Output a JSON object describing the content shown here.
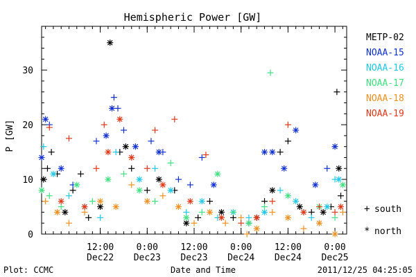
{
  "chart_data": {
    "type": "scatter",
    "title": "Hemispheric Power [GW]",
    "xlabel": "Date and Time",
    "ylabel": "P [GW]",
    "footer_left": "Plot: CCMC",
    "footer_right": "2011/12/25 04:25:05",
    "xlim": [
      "2011-12-21 21:00",
      "2011-12-25 03:00"
    ],
    "ylim": [
      0,
      38
    ],
    "y_ticks": [
      0,
      10,
      20,
      30
    ],
    "x_ticks": [
      {
        "time": "2011-12-22 12:00",
        "label": "12:00",
        "sub": "Dec22"
      },
      {
        "time": "2011-12-23 00:00",
        "label": "0:00",
        "sub": "Dec23"
      },
      {
        "time": "2011-12-23 12:00",
        "label": "12:00",
        "sub": "Dec23"
      },
      {
        "time": "2011-12-24 00:00",
        "label": "0:00",
        "sub": "Dec24"
      },
      {
        "time": "2011-12-24 12:00",
        "label": "12:00",
        "sub": "Dec24"
      },
      {
        "time": "2011-12-25 00:00",
        "label": "0:00",
        "sub": "Dec25"
      }
    ],
    "legend_position": "right",
    "marker_legend": [
      {
        "symbol": "+",
        "label": "south"
      },
      {
        "symbol": "*",
        "label": "north"
      }
    ],
    "series": [
      {
        "name": "METP-02",
        "color": "#000000",
        "points": [
          [
            "2011-12-21 21:30",
            10,
            "n"
          ],
          [
            "2011-12-21 22:30",
            12,
            "+"
          ],
          [
            "2011-12-21 23:30",
            15,
            "+"
          ],
          [
            "2011-12-22 01:00",
            11,
            "+"
          ],
          [
            "2011-12-22 03:00",
            4,
            "n"
          ],
          [
            "2011-12-22 05:00",
            8,
            "+"
          ],
          [
            "2011-12-22 07:00",
            11,
            "+"
          ],
          [
            "2011-12-22 09:00",
            3,
            "+"
          ],
          [
            "2011-12-22 12:00",
            5,
            "n"
          ],
          [
            "2011-12-22 14:30",
            35,
            "n"
          ],
          [
            "2011-12-22 17:00",
            15,
            "+"
          ],
          [
            "2011-12-22 18:30",
            16,
            "n"
          ],
          [
            "2011-12-22 20:00",
            12,
            "+"
          ],
          [
            "2011-12-23 00:00",
            8,
            "+"
          ],
          [
            "2011-12-23 03:00",
            10,
            "n"
          ],
          [
            "2011-12-23 07:00",
            8,
            "+"
          ],
          [
            "2011-12-23 10:00",
            2,
            "n"
          ],
          [
            "2011-12-23 13:00",
            3,
            "+"
          ],
          [
            "2011-12-23 16:00",
            6,
            "+"
          ],
          [
            "2011-12-23 19:00",
            4,
            "n"
          ],
          [
            "2011-12-23 22:00",
            3,
            "+"
          ],
          [
            "2011-12-24 02:00",
            2,
            "+"
          ],
          [
            "2011-12-24 04:00",
            3,
            "n"
          ],
          [
            "2011-12-24 06:00",
            6,
            "+"
          ],
          [
            "2011-12-24 08:00",
            8,
            "n"
          ],
          [
            "2011-12-24 10:00",
            15,
            "+"
          ],
          [
            "2011-12-24 12:00",
            17,
            "+"
          ],
          [
            "2011-12-24 15:00",
            5,
            "n"
          ],
          [
            "2011-12-24 18:00",
            4,
            "+"
          ],
          [
            "2011-12-24 21:00",
            4,
            "n"
          ],
          [
            "2011-12-24 23:00",
            5,
            "+"
          ],
          [
            "2011-12-25 00:30",
            26,
            "+"
          ],
          [
            "2011-12-25 01:00",
            12,
            "n"
          ],
          [
            "2011-12-25 01:30",
            7,
            "+"
          ]
        ]
      },
      {
        "name": "NOAA-15",
        "color": "#1030d0",
        "points": [
          [
            "2011-12-21 21:00",
            14,
            "n"
          ],
          [
            "2011-12-21 22:00",
            21,
            "n"
          ],
          [
            "2011-12-21 23:00",
            20,
            "+"
          ],
          [
            "2011-12-22 02:00",
            12,
            "n"
          ],
          [
            "2011-12-22 05:00",
            9,
            "+"
          ],
          [
            "2011-12-22 11:00",
            17,
            "+"
          ],
          [
            "2011-12-22 13:30",
            18,
            "n"
          ],
          [
            "2011-12-22 15:00",
            23,
            "n"
          ],
          [
            "2011-12-22 15:30",
            25,
            "+"
          ],
          [
            "2011-12-22 16:30",
            23,
            "+"
          ],
          [
            "2011-12-22 18:00",
            19,
            "+"
          ],
          [
            "2011-12-22 21:00",
            16,
            "n"
          ],
          [
            "2011-12-23 01:00",
            17,
            "+"
          ],
          [
            "2011-12-23 03:00",
            15,
            "n"
          ],
          [
            "2011-12-23 04:00",
            15,
            "+"
          ],
          [
            "2011-12-23 08:00",
            10,
            "+"
          ],
          [
            "2011-12-23 11:00",
            9,
            "+"
          ],
          [
            "2011-12-23 14:00",
            14,
            "+"
          ],
          [
            "2011-12-23 17:00",
            9,
            "n"
          ],
          [
            "2011-12-24 06:00",
            15,
            "n"
          ],
          [
            "2011-12-24 08:00",
            15,
            "n"
          ],
          [
            "2011-12-24 11:00",
            12,
            "n"
          ],
          [
            "2011-12-24 14:00",
            19,
            "n"
          ],
          [
            "2011-12-24 19:00",
            9,
            "n"
          ],
          [
            "2011-12-24 22:00",
            12,
            "+"
          ],
          [
            "2011-12-25 00:00",
            16,
            "n"
          ]
        ]
      },
      {
        "name": "NOAA-16",
        "color": "#20c8e8",
        "points": [
          [
            "2011-12-21 21:30",
            16,
            "+"
          ],
          [
            "2011-12-22 00:00",
            11,
            "n"
          ],
          [
            "2011-12-22 04:00",
            7,
            "+"
          ],
          [
            "2011-12-22 08:00",
            5,
            "n"
          ],
          [
            "2011-12-22 12:00",
            3,
            "+"
          ],
          [
            "2011-12-22 16:00",
            15,
            "+"
          ],
          [
            "2011-12-22 22:00",
            10,
            "n"
          ],
          [
            "2011-12-23 02:00",
            12,
            "+"
          ],
          [
            "2011-12-23 06:00",
            8,
            "n"
          ],
          [
            "2011-12-23 10:00",
            4,
            "+"
          ],
          [
            "2011-12-23 14:00",
            6,
            "n"
          ],
          [
            "2011-12-23 18:00",
            3,
            "+"
          ],
          [
            "2011-12-23 22:00",
            4,
            "n"
          ],
          [
            "2011-12-24 02:00",
            3,
            "+"
          ],
          [
            "2011-12-24 06:00",
            4,
            "n"
          ],
          [
            "2011-12-24 10:00",
            8,
            "+"
          ],
          [
            "2011-12-24 14:00",
            6,
            "n"
          ],
          [
            "2011-12-24 18:00",
            3,
            "+"
          ],
          [
            "2011-12-24 22:00",
            5,
            "n"
          ],
          [
            "2011-12-25 00:00",
            10,
            "+"
          ],
          [
            "2011-12-25 01:00",
            10,
            "n"
          ]
        ]
      },
      {
        "name": "NOAA-17",
        "color": "#40e080",
        "points": [
          [
            "2011-12-21 21:00",
            8,
            "n"
          ],
          [
            "2011-12-21 23:00",
            7,
            "+"
          ],
          [
            "2011-12-22 02:00",
            5,
            "+"
          ],
          [
            "2011-12-22 06:00",
            9,
            "n"
          ],
          [
            "2011-12-22 10:00",
            6,
            "+"
          ],
          [
            "2011-12-22 14:00",
            10,
            "n"
          ],
          [
            "2011-12-22 18:00",
            11,
            "+"
          ],
          [
            "2011-12-22 22:00",
            8,
            "n"
          ],
          [
            "2011-12-23 02:00",
            6,
            "+"
          ],
          [
            "2011-12-23 06:00",
            13,
            "+"
          ],
          [
            "2011-12-23 10:00",
            3,
            "n"
          ],
          [
            "2011-12-23 14:00",
            4,
            "+"
          ],
          [
            "2011-12-23 18:00",
            11,
            "n"
          ],
          [
            "2011-12-23 22:00",
            4,
            "+"
          ],
          [
            "2011-12-24 02:00",
            2,
            "n"
          ],
          [
            "2011-12-24 06:00",
            5,
            "+"
          ],
          [
            "2011-12-24 07:30",
            29.5,
            "+"
          ],
          [
            "2011-12-24 12:00",
            7,
            "n"
          ],
          [
            "2011-12-24 16:00",
            4,
            "+"
          ],
          [
            "2011-12-24 20:00",
            5,
            "n"
          ],
          [
            "2011-12-25 00:00",
            3,
            "+"
          ],
          [
            "2011-12-25 02:00",
            9,
            "n"
          ]
        ]
      },
      {
        "name": "NOAA-18",
        "color": "#f09020",
        "points": [
          [
            "2011-12-21 22:00",
            6,
            "+"
          ],
          [
            "2011-12-22 01:00",
            4,
            "n"
          ],
          [
            "2011-12-22 04:00",
            2,
            "+"
          ],
          [
            "2011-12-22 08:00",
            4,
            "+"
          ],
          [
            "2011-12-22 12:00",
            6,
            "n"
          ],
          [
            "2011-12-22 16:00",
            5,
            "n"
          ],
          [
            "2011-12-22 20:00",
            9,
            "+"
          ],
          [
            "2011-12-23 00:00",
            6,
            "n"
          ],
          [
            "2011-12-23 04:00",
            7,
            "+"
          ],
          [
            "2011-12-23 08:00",
            5,
            "n"
          ],
          [
            "2011-12-23 12:00",
            2,
            "+"
          ],
          [
            "2011-12-23 16:00",
            4,
            "n"
          ],
          [
            "2011-12-23 20:00",
            2,
            "+"
          ],
          [
            "2011-12-24 00:00",
            3,
            "+"
          ],
          [
            "2011-12-24 01:30",
            0,
            "+"
          ],
          [
            "2011-12-24 04:00",
            1,
            "n"
          ],
          [
            "2011-12-24 08:00",
            4,
            "+"
          ],
          [
            "2011-12-24 12:00",
            3,
            "n"
          ],
          [
            "2011-12-24 16:00",
            1,
            "+"
          ],
          [
            "2011-12-24 20:00",
            2,
            "n"
          ],
          [
            "2011-12-25 00:00",
            0,
            "n"
          ],
          [
            "2011-12-25 02:00",
            4,
            "+"
          ]
        ]
      },
      {
        "name": "NOAA-19",
        "color": "#e03818",
        "points": [
          [
            "2011-12-21 23:00",
            19.5,
            "+"
          ],
          [
            "2011-12-22 02:00",
            6,
            "n"
          ],
          [
            "2011-12-22 04:00",
            17.5,
            "+"
          ],
          [
            "2011-12-22 08:00",
            5,
            "n"
          ],
          [
            "2011-12-22 11:00",
            12,
            "+"
          ],
          [
            "2011-12-22 13:00",
            20,
            "+"
          ],
          [
            "2011-12-22 14:00",
            15,
            "n"
          ],
          [
            "2011-12-22 17:00",
            21,
            "n"
          ],
          [
            "2011-12-22 20:00",
            14,
            "n"
          ],
          [
            "2011-12-23 00:00",
            12,
            "+"
          ],
          [
            "2011-12-23 02:00",
            19,
            "+"
          ],
          [
            "2011-12-23 04:00",
            9,
            "n"
          ],
          [
            "2011-12-23 07:00",
            21,
            "+"
          ],
          [
            "2011-12-23 11:00",
            6,
            "n"
          ],
          [
            "2011-12-23 15:00",
            14.5,
            "+"
          ],
          [
            "2011-12-23 19:00",
            3,
            "n"
          ],
          [
            "2011-12-24 00:00",
            2,
            "+"
          ],
          [
            "2011-12-24 04:00",
            3,
            "n"
          ],
          [
            "2011-12-24 08:00",
            6,
            "+"
          ],
          [
            "2011-12-24 12:00",
            20,
            "+"
          ],
          [
            "2011-12-24 16:00",
            4,
            "n"
          ],
          [
            "2011-12-24 20:00",
            5,
            "+"
          ],
          [
            "2011-12-25 00:00",
            4,
            "+"
          ],
          [
            "2011-12-25 01:30",
            5,
            "n"
          ]
        ]
      }
    ]
  }
}
